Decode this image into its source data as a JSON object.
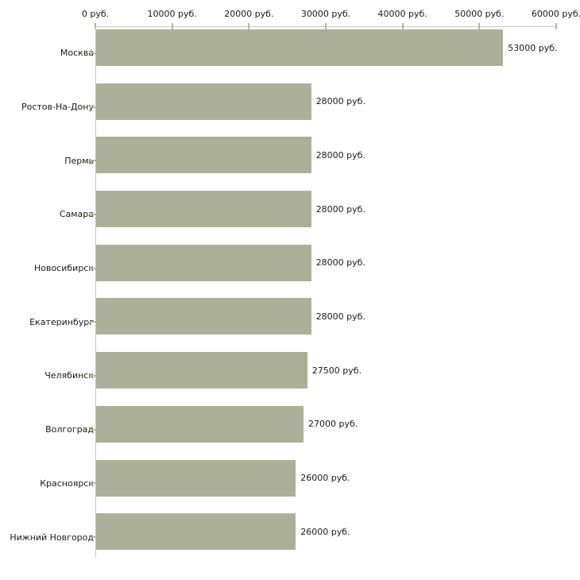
{
  "chart_data": {
    "type": "bar",
    "orientation": "horizontal",
    "title": "",
    "xlabel": "",
    "ylabel": "",
    "unit": "руб.",
    "categories": [
      "Москва",
      "Ростов-На-Дону",
      "Пермь",
      "Самара",
      "Новосибирск",
      "Екатеринбург",
      "Челябинск",
      "Волгоград",
      "Красноярск",
      "Нижний Новгород"
    ],
    "values": [
      53000,
      28000,
      28000,
      28000,
      28000,
      28000,
      27500,
      27000,
      26000,
      26000
    ],
    "value_labels": [
      "53000 руб.",
      "28000 руб.",
      "28000 руб.",
      "28000 руб.",
      "28000 руб.",
      "28000 руб.",
      "27500 руб.",
      "27000 руб.",
      "26000 руб.",
      "26000 руб."
    ],
    "x_ticks": [
      0,
      10000,
      20000,
      30000,
      40000,
      50000,
      60000
    ],
    "x_tick_labels": [
      "0 руб.",
      "10000 руб.",
      "20000 руб.",
      "30000 руб.",
      "40000 руб.",
      "50000 руб.",
      "60000 руб."
    ],
    "xlim": [
      0,
      60000
    ],
    "grid": false,
    "legend": false,
    "axis_position": "top",
    "colors": {
      "bar": "#acb098",
      "axis": "#c4c4c4",
      "tick": "#b6ba8c",
      "text": "#1a1a1a",
      "background": "#ffffff"
    }
  }
}
